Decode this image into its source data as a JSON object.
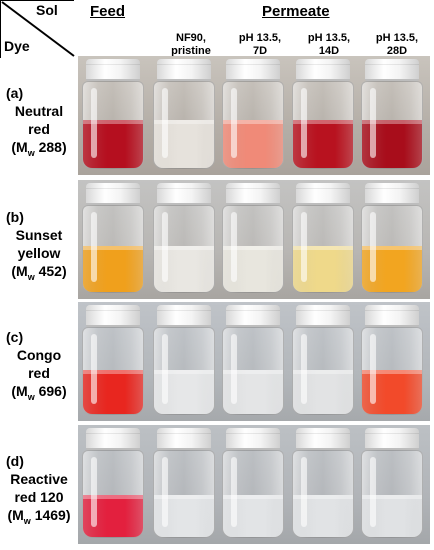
{
  "header": {
    "corner_sol": "Sol",
    "corner_dye": "Dye",
    "feed": "Feed",
    "permeate": "Permeate",
    "columns": [
      {
        "line1": "NF90,",
        "line2": "pristine"
      },
      {
        "line1": "pH 13.5,",
        "line2": "7D"
      },
      {
        "line1": "pH 13.5,",
        "line2": "14D"
      },
      {
        "line1": "pH 13.5,",
        "line2": "28D"
      }
    ]
  },
  "rows": [
    {
      "tag": "(a)",
      "name1": "Neutral",
      "name2": "red",
      "mw_prefix": "(M",
      "mw_sub": "w",
      "mw_value": " 288)"
    },
    {
      "tag": "(b)",
      "name1": "Sunset",
      "name2": "yellow",
      "mw_prefix": "(M",
      "mw_sub": "w",
      "mw_value": " 452)"
    },
    {
      "tag": "(c)",
      "name1": "Congo",
      "name2": "red",
      "mw_prefix": "(M",
      "mw_sub": "w",
      "mw_value": " 696)"
    },
    {
      "tag": "(d)",
      "name1": "Reactive",
      "name2": "red 120",
      "mw_prefix": "(M",
      "mw_sub": "w",
      "mw_value": " 1469)"
    }
  ],
  "vial_colors": [
    [
      "#b50f1f",
      "#e6e2dc",
      "#f08a78",
      "#b8121f",
      "#a80d1b"
    ],
    [
      "#f0a01c",
      "#e9e7e2",
      "#e8e6de",
      "#efd98a",
      "#f2a520"
    ],
    [
      "#e8261f",
      "#e6e7e8",
      "#e4e5e6",
      "#e2e3e4",
      "#f24a2a"
    ],
    [
      "#e3203e",
      "#e3e5e7",
      "#e2e4e6",
      "#e1e3e5",
      "#e0e2e4"
    ]
  ]
}
